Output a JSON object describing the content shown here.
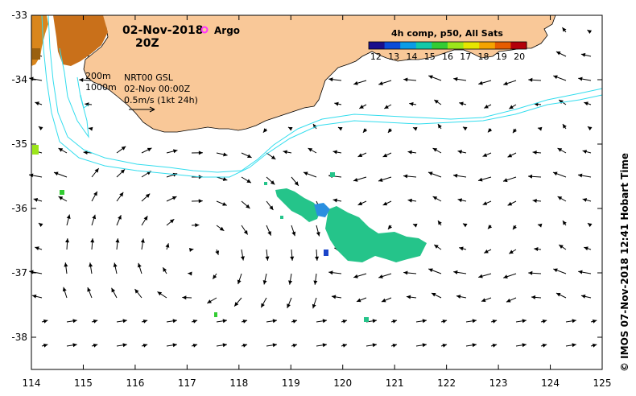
{
  "header": {
    "date": "02-Nov-2018",
    "hour": "20Z",
    "argo_label": "Argo",
    "argo_color": "#ff33ff"
  },
  "depth_labels": [
    "200m",
    "1000m"
  ],
  "info_lines": [
    "NRT00 GSL",
    "02-Nov 00:00Z",
    "0.5m/s (1kt 24h)"
  ],
  "colorbar": {
    "title": "4h comp, p50, All Sats",
    "ticks": [
      "12",
      "13",
      "14",
      "15",
      "16",
      "17",
      "18",
      "19",
      "20"
    ],
    "min": 11.6,
    "max": 20.4,
    "colors": [
      "#1a0f8c",
      "#0a4cd9",
      "#0a9ce6",
      "#12c9a8",
      "#33cc33",
      "#9ce61a",
      "#e6e600",
      "#f5a300",
      "#e65c00",
      "#b3000a"
    ]
  },
  "axes": {
    "x_ticks": [
      "114",
      "115",
      "116",
      "117",
      "118",
      "119",
      "120",
      "121",
      "122",
      "123",
      "124",
      "125"
    ],
    "y_ticks": [
      "-33",
      "-34",
      "-35",
      "-36",
      "-37",
      "-38"
    ],
    "lon_range": [
      114,
      125
    ],
    "lat_range": [
      -38.5,
      -33
    ]
  },
  "credit": "© IMOS 07-Nov-2018 12:41 Hobart Time",
  "colors": {
    "land": "#f9c898",
    "contour": "#33ddee",
    "sst_green": "#25c48a",
    "sst_blue": "#2a8fe0"
  }
}
